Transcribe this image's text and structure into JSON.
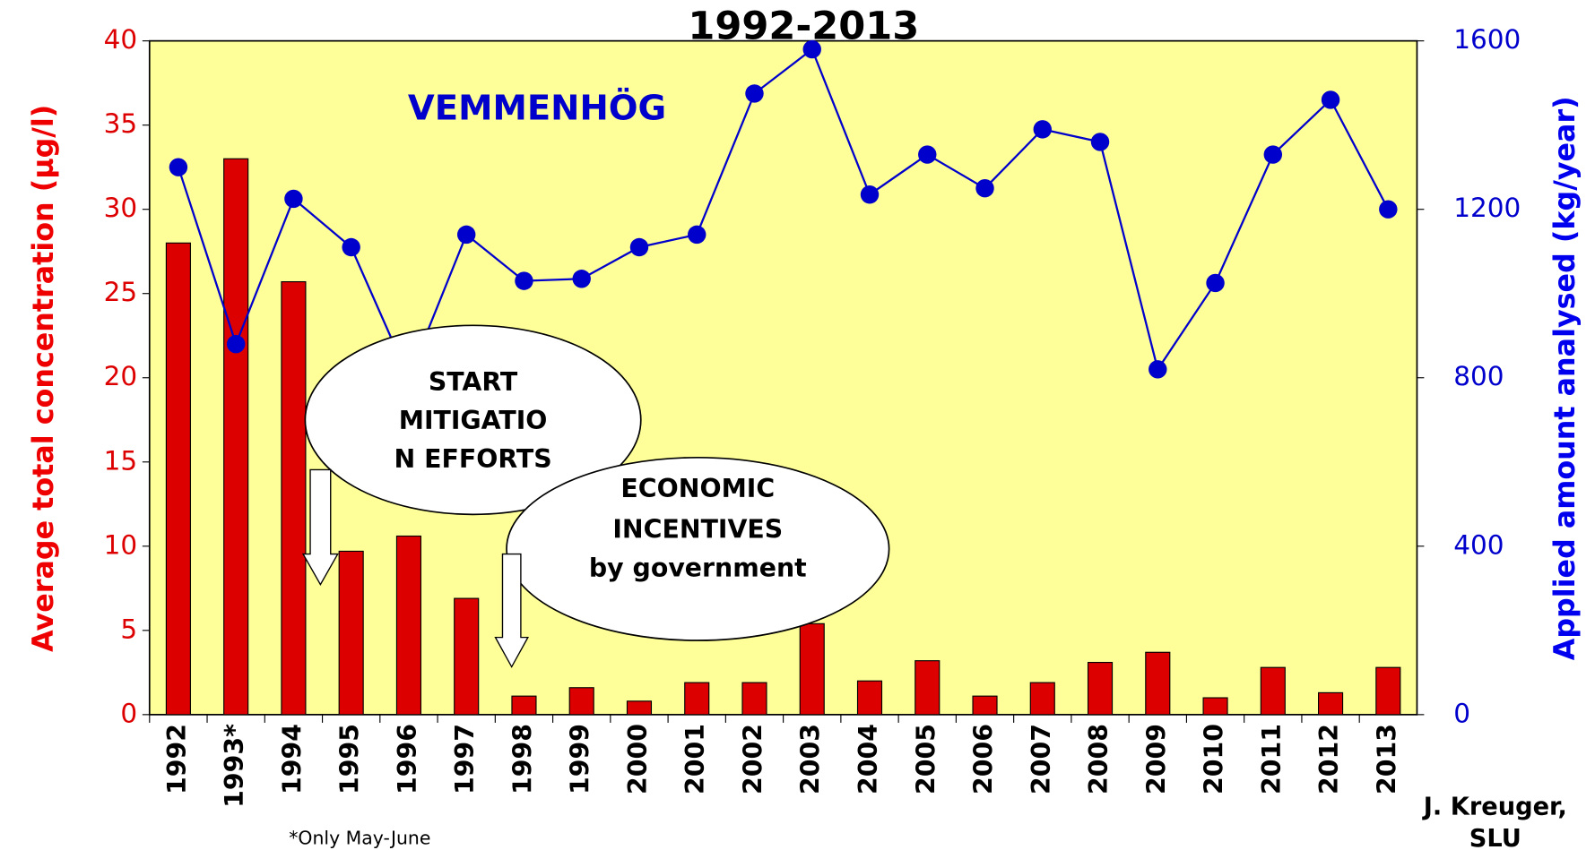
{
  "chart_data": {
    "type": "bar_line",
    "title": "1992-2013",
    "ylabel": "Average total concentration (µg/l)",
    "y2label": "Applied amount analysed (kg/year)",
    "categories": [
      "1992",
      "1993*",
      "1994",
      "1995",
      "1996",
      "1997",
      "1998",
      "1999",
      "2000",
      "2001",
      "2002",
      "2003",
      "2004",
      "2005",
      "2006",
      "2007",
      "2008",
      "2009",
      "2010",
      "2011",
      "2012",
      "2013"
    ],
    "series": [
      {
        "type": "bar",
        "color": "#dd0000",
        "values": [
          28.0,
          33.0,
          25.7,
          9.7,
          10.6,
          6.9,
          1.1,
          1.6,
          0.8,
          1.9,
          1.9,
          5.4,
          2.0,
          3.2,
          1.1,
          1.9,
          3.1,
          3.7,
          1.0,
          2.8,
          1.3,
          2.8
        ]
      },
      {
        "type": "line",
        "axis": "y2",
        "color": "#0000cc",
        "values": [
          1300,
          880,
          1225,
          1110,
          800,
          1140,
          1030,
          1035,
          1110,
          1140,
          1475,
          1580,
          1235,
          1330,
          1250,
          1390,
          1360,
          820,
          1025,
          1330,
          1460,
          1200
        ]
      }
    ],
    "ylim": [
      0,
      40
    ],
    "yticks": [
      0,
      5,
      10,
      15,
      20,
      25,
      30,
      35,
      40
    ],
    "y2lim": [
      0,
      1600
    ],
    "y2ticks": [
      0,
      400,
      800,
      1200,
      1600
    ],
    "annotations": [
      "VEMMENHÖG",
      "START",
      "MITIGATIO",
      "N EFFORTS",
      "ECONOMIC",
      "INCENTIVES",
      "by government",
      "*Only May-June",
      "J. Kreuger,",
      "SLU"
    ],
    "background": "#ffff99"
  }
}
